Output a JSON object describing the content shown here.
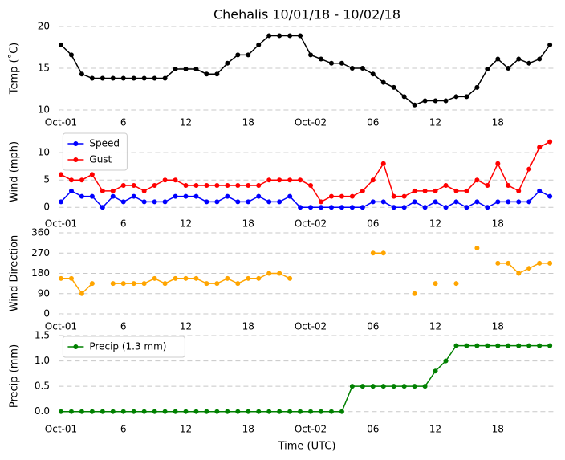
{
  "chart_data": [
    {
      "type": "line",
      "title": "Chehalis 10/01/18 - 10/02/18",
      "ylabel": "Temp (˚C)",
      "x": [
        0,
        1,
        2,
        3,
        4,
        5,
        6,
        7,
        8,
        9,
        10,
        11,
        12,
        13,
        14,
        15,
        16,
        17,
        18,
        19,
        20,
        21,
        22,
        23,
        24,
        25,
        26,
        27,
        28,
        29,
        30,
        31,
        32,
        33,
        34,
        35,
        36,
        37,
        38,
        39,
        40,
        41,
        42,
        43,
        44,
        45,
        46,
        47
      ],
      "values": [
        17.8,
        16.6,
        14.3,
        13.8,
        13.8,
        13.8,
        13.8,
        13.8,
        13.8,
        13.8,
        13.8,
        14.9,
        14.9,
        14.9,
        14.3,
        14.3,
        15.6,
        16.6,
        16.6,
        17.8,
        18.9,
        18.9,
        18.9,
        18.9,
        16.6,
        16.1,
        15.6,
        15.6,
        15.0,
        15.0,
        14.3,
        13.3,
        12.7,
        11.6,
        10.6,
        11.1,
        11.1,
        11.1,
        11.6,
        11.6,
        12.7,
        14.9,
        16.1,
        15.0,
        16.1,
        15.6,
        16.1,
        17.8
      ],
      "color": "#000000",
      "xlim": [
        -0.2,
        47.5
      ],
      "xticks": [
        {
          "value": 0,
          "label": "Oct-01"
        },
        6,
        12,
        18,
        {
          "value": 24,
          "label": "Oct-02"
        },
        {
          "value": 30,
          "label": "06"
        },
        {
          "value": 36,
          "label": "12"
        },
        {
          "value": 42,
          "label": "18"
        }
      ],
      "ylim": [
        10,
        20
      ],
      "yticks": [
        10,
        15,
        20
      ],
      "grid": true
    },
    {
      "type": "line",
      "ylabel": "Wind (mph)",
      "legend": "upper left",
      "x": [
        0,
        1,
        2,
        3,
        4,
        5,
        6,
        7,
        8,
        9,
        10,
        11,
        12,
        13,
        14,
        15,
        16,
        17,
        18,
        19,
        20,
        21,
        22,
        23,
        24,
        25,
        26,
        27,
        28,
        29,
        30,
        31,
        32,
        33,
        34,
        35,
        36,
        37,
        38,
        39,
        40,
        41,
        42,
        43,
        44,
        45,
        46,
        47
      ],
      "series": [
        {
          "name": "Speed",
          "color": "#0000ff",
          "values": [
            1,
            3,
            2,
            2,
            0,
            2,
            1,
            2,
            1,
            1,
            1,
            2,
            2,
            2,
            1,
            1,
            2,
            1,
            1,
            2,
            1,
            1,
            2,
            0,
            0,
            0,
            0,
            0,
            0,
            0,
            1,
            1,
            0,
            0,
            1,
            0,
            1,
            0,
            1,
            0,
            1,
            0,
            1,
            1,
            1,
            1,
            3,
            2
          ]
        },
        {
          "name": "Gust",
          "color": "#ff0000",
          "values": [
            6,
            5,
            5,
            6,
            3,
            3,
            4,
            4,
            3,
            4,
            5,
            5,
            4,
            4,
            4,
            4,
            4,
            4,
            4,
            4,
            5,
            5,
            5,
            5,
            4,
            1,
            2,
            2,
            2,
            3,
            5,
            8,
            2,
            2,
            3,
            3,
            3,
            4,
            3,
            3,
            5,
            4,
            8,
            4,
            3,
            7,
            11,
            12
          ]
        }
      ],
      "xlim": [
        -0.2,
        47.5
      ],
      "xticks": [
        {
          "value": 0,
          "label": "Oct-01"
        },
        6,
        12,
        18,
        {
          "value": 24,
          "label": "Oct-02"
        },
        {
          "value": 30,
          "label": "06"
        },
        {
          "value": 36,
          "label": "12"
        },
        {
          "value": 42,
          "label": "18"
        }
      ],
      "ylim": [
        -0.7,
        13.7
      ],
      "yticks": [
        0,
        5,
        10
      ],
      "grid": true
    },
    {
      "type": "line",
      "ylabel": "Wind Direction",
      "x": [
        0,
        1,
        2,
        3,
        4,
        5,
        6,
        7,
        8,
        9,
        10,
        11,
        12,
        13,
        14,
        15,
        16,
        17,
        18,
        19,
        20,
        21,
        22,
        23,
        24,
        25,
        26,
        27,
        28,
        29,
        30,
        31,
        32,
        33,
        34,
        35,
        36,
        37,
        38,
        39,
        40,
        41,
        42,
        43,
        44,
        45,
        46,
        47
      ],
      "values": [
        157.5,
        157.5,
        90,
        135,
        null,
        135,
        135,
        135,
        135,
        157.5,
        135,
        157.5,
        157.5,
        157.5,
        135,
        135,
        157.5,
        135,
        157.5,
        157.5,
        180,
        180,
        157.5,
        null,
        null,
        null,
        null,
        null,
        null,
        null,
        270,
        270,
        null,
        null,
        90,
        null,
        135,
        null,
        135,
        null,
        292.5,
        null,
        225,
        225,
        180,
        202.5,
        225,
        225
      ],
      "color": "#ffa500",
      "xlim": [
        -0.2,
        47.5
      ],
      "xticks": [
        {
          "value": 0,
          "label": "Oct-01"
        },
        6,
        12,
        18,
        {
          "value": 24,
          "label": "Oct-02"
        },
        {
          "value": 30,
          "label": "06"
        },
        {
          "value": 36,
          "label": "12"
        },
        {
          "value": 42,
          "label": "18"
        }
      ],
      "ylim": [
        0,
        360
      ],
      "yticks": [
        0,
        90,
        180,
        270,
        360
      ],
      "grid": true
    },
    {
      "type": "line",
      "ylabel": "Precip (mm)",
      "xlabel": "Time (UTC)",
      "legend": "upper left",
      "x": [
        0,
        1,
        2,
        3,
        4,
        5,
        6,
        7,
        8,
        9,
        10,
        11,
        12,
        13,
        14,
        15,
        16,
        17,
        18,
        19,
        20,
        21,
        22,
        23,
        24,
        25,
        26,
        27,
        28,
        29,
        30,
        31,
        32,
        33,
        34,
        35,
        36,
        37,
        38,
        39,
        40,
        41,
        42,
        43,
        44,
        45,
        46,
        47
      ],
      "series": [
        {
          "name": "Precip (1.3 mm)",
          "color": "#008000",
          "values": [
            0,
            0,
            0,
            0,
            0,
            0,
            0,
            0,
            0,
            0,
            0,
            0,
            0,
            0,
            0,
            0,
            0,
            0,
            0,
            0,
            0,
            0,
            0,
            0,
            0,
            0,
            0,
            0,
            0.5,
            0.5,
            0.5,
            0.5,
            0.5,
            0.5,
            0.5,
            0.5,
            0.8,
            1.0,
            1.3,
            1.3,
            1.3,
            1.3,
            1.3,
            1.3,
            1.3,
            1.3,
            1.3,
            1.3
          ]
        }
      ],
      "xlim": [
        -0.2,
        47.5
      ],
      "xticks": [
        {
          "value": 0,
          "label": "Oct-01"
        },
        6,
        12,
        18,
        {
          "value": 24,
          "label": "Oct-02"
        },
        {
          "value": 30,
          "label": "06"
        },
        {
          "value": 36,
          "label": "12"
        },
        {
          "value": 42,
          "label": "18"
        }
      ],
      "ylim": [
        -0.1,
        1.5
      ],
      "yticks": [
        {
          "value": 0,
          "label": "0.0"
        },
        {
          "value": 0.5,
          "label": "0.5"
        },
        {
          "value": 1,
          "label": "1.0"
        },
        {
          "value": 1.5,
          "label": "1.5"
        }
      ],
      "grid": true
    }
  ]
}
